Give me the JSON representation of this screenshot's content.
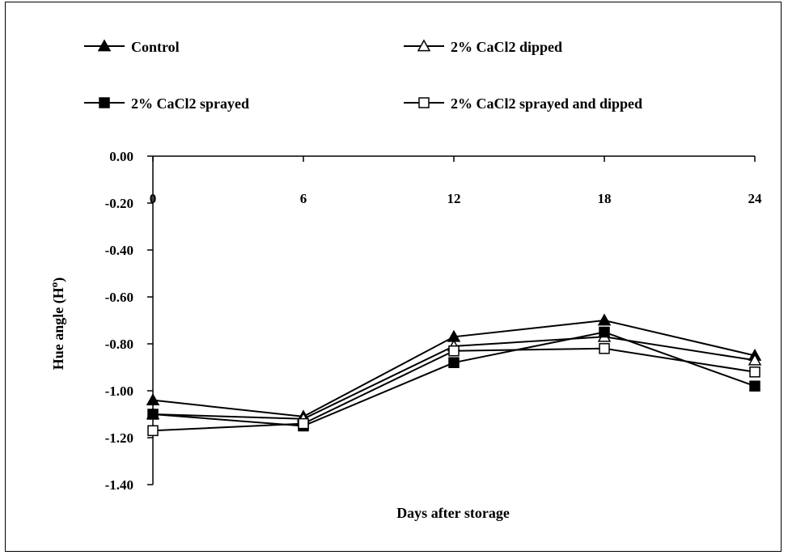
{
  "chart_data": {
    "type": "line",
    "title": "",
    "xlabel": "Days after storage",
    "ylabel": "Hue angle (H°)",
    "ylabel_main": "Hue angle (H",
    "ylabel_sup": "o",
    "ylabel_close": ")",
    "categories": [
      "0",
      "6",
      "12",
      "18",
      "24"
    ],
    "x": [
      0,
      6,
      12,
      18,
      24
    ],
    "ylim": [
      -1.4,
      0.0
    ],
    "yticks": [
      "0.00",
      "-0.20",
      "-0.40",
      "-0.60",
      "-0.80",
      "-1.00",
      "-1.20",
      "-1.40"
    ],
    "ytick_values": [
      0.0,
      -0.2,
      -0.4,
      -0.6,
      -0.8,
      -1.0,
      -1.2,
      -1.4
    ],
    "grid": false,
    "legend_position": "top",
    "series": [
      {
        "name": "Control",
        "marker": "triangle-filled",
        "values": [
          -1.04,
          -1.11,
          -0.77,
          -0.7,
          -0.85
        ]
      },
      {
        "name": "2% CaCl2 dipped",
        "marker": "triangle-open",
        "values": [
          -1.1,
          -1.12,
          -0.81,
          -0.77,
          -0.87
        ]
      },
      {
        "name": "2% CaCl2 sprayed",
        "marker": "square-filled",
        "values": [
          -1.1,
          -1.15,
          -0.88,
          -0.75,
          -0.98
        ]
      },
      {
        "name": "2% CaCl2 sprayed and dipped",
        "marker": "square-open",
        "values": [
          -1.17,
          -1.14,
          -0.83,
          -0.82,
          -0.92
        ]
      }
    ]
  }
}
